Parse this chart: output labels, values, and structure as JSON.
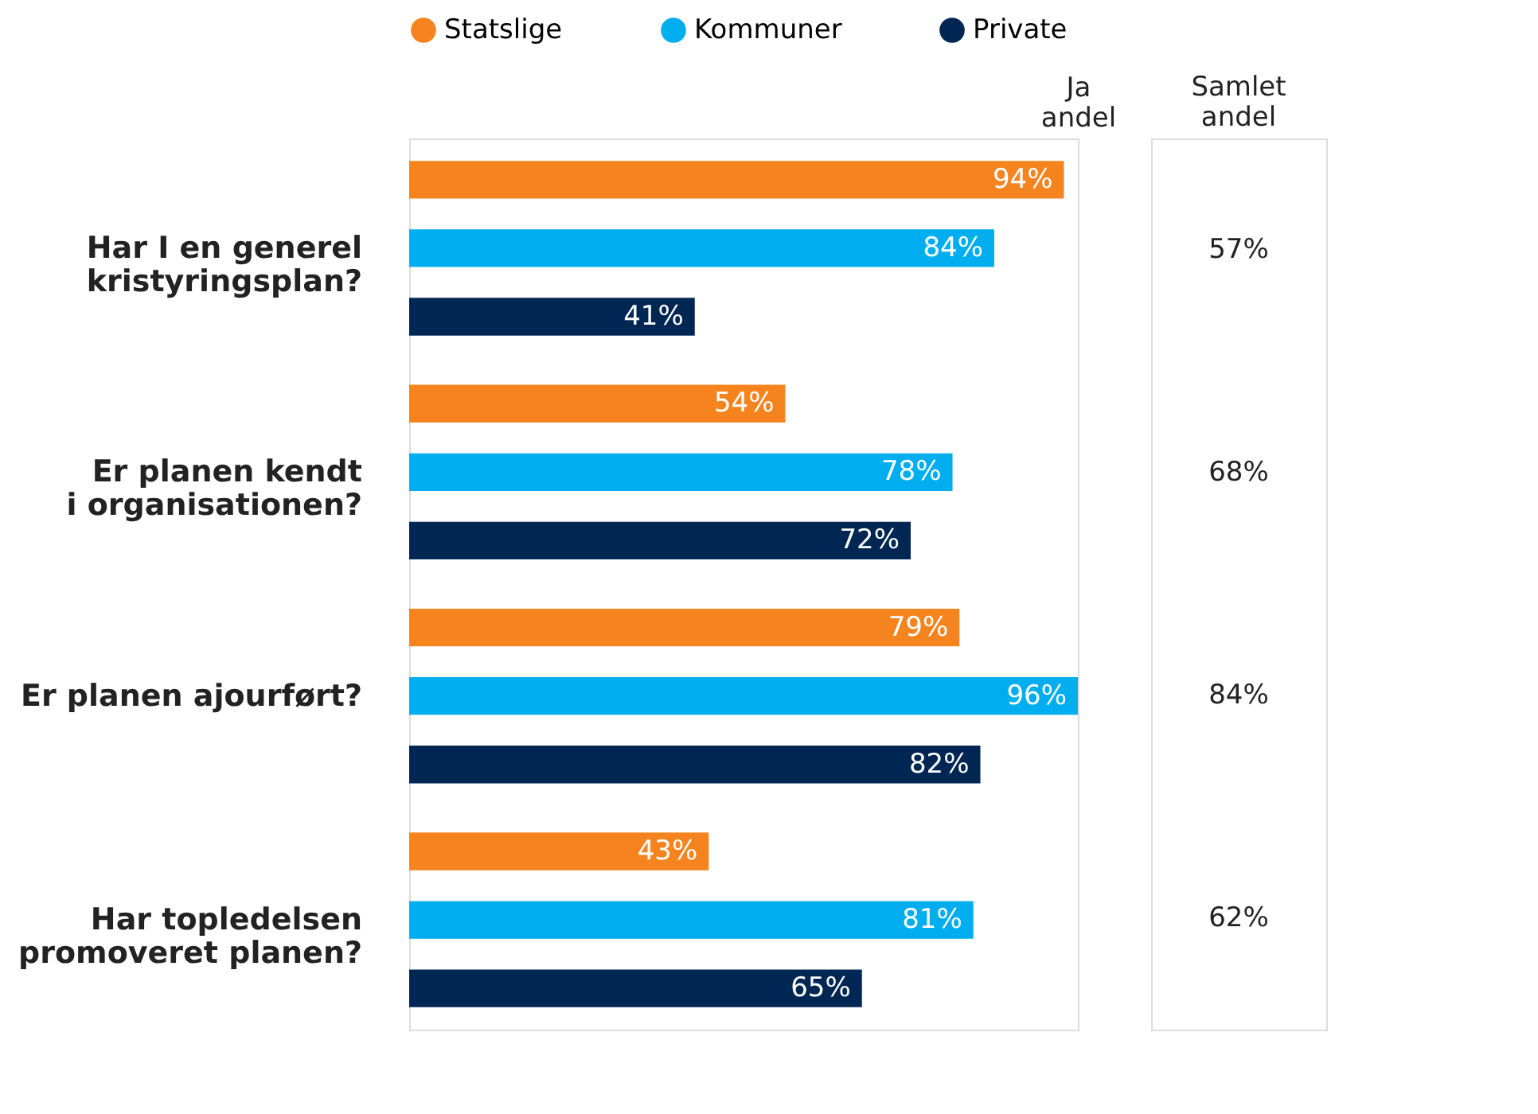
{
  "chart_data": {
    "type": "bar",
    "orientation": "horizontal",
    "xlabel": "Ja andel",
    "categories": [
      "Har I en generel\nkristyringsplan?",
      "Er planen kendt\ni organisationen?",
      "Er planen ajourført?",
      "Har topledelsen\npromoveret planen?"
    ],
    "series": [
      {
        "name": "Statslige",
        "color": "#f5841f",
        "values": [
          94,
          54,
          79,
          43
        ],
        "value_labels": [
          "94%",
          "54%",
          "79%",
          "43%"
        ]
      },
      {
        "name": "Kommuner",
        "color": "#00aeef",
        "values": [
          84,
          78,
          96,
          81
        ],
        "value_labels": [
          "84%",
          "78%",
          "96%",
          "81%"
        ]
      },
      {
        "name": "Private",
        "color": "#002654",
        "values": [
          41,
          72,
          82,
          65
        ],
        "value_labels": [
          "41%",
          "72%",
          "82%",
          "65%"
        ]
      }
    ],
    "legend": "top",
    "grid": false,
    "annotations": [
      "Samlet andel",
      "57%",
      "68%",
      "84%",
      "62%"
    ]
  }
}
